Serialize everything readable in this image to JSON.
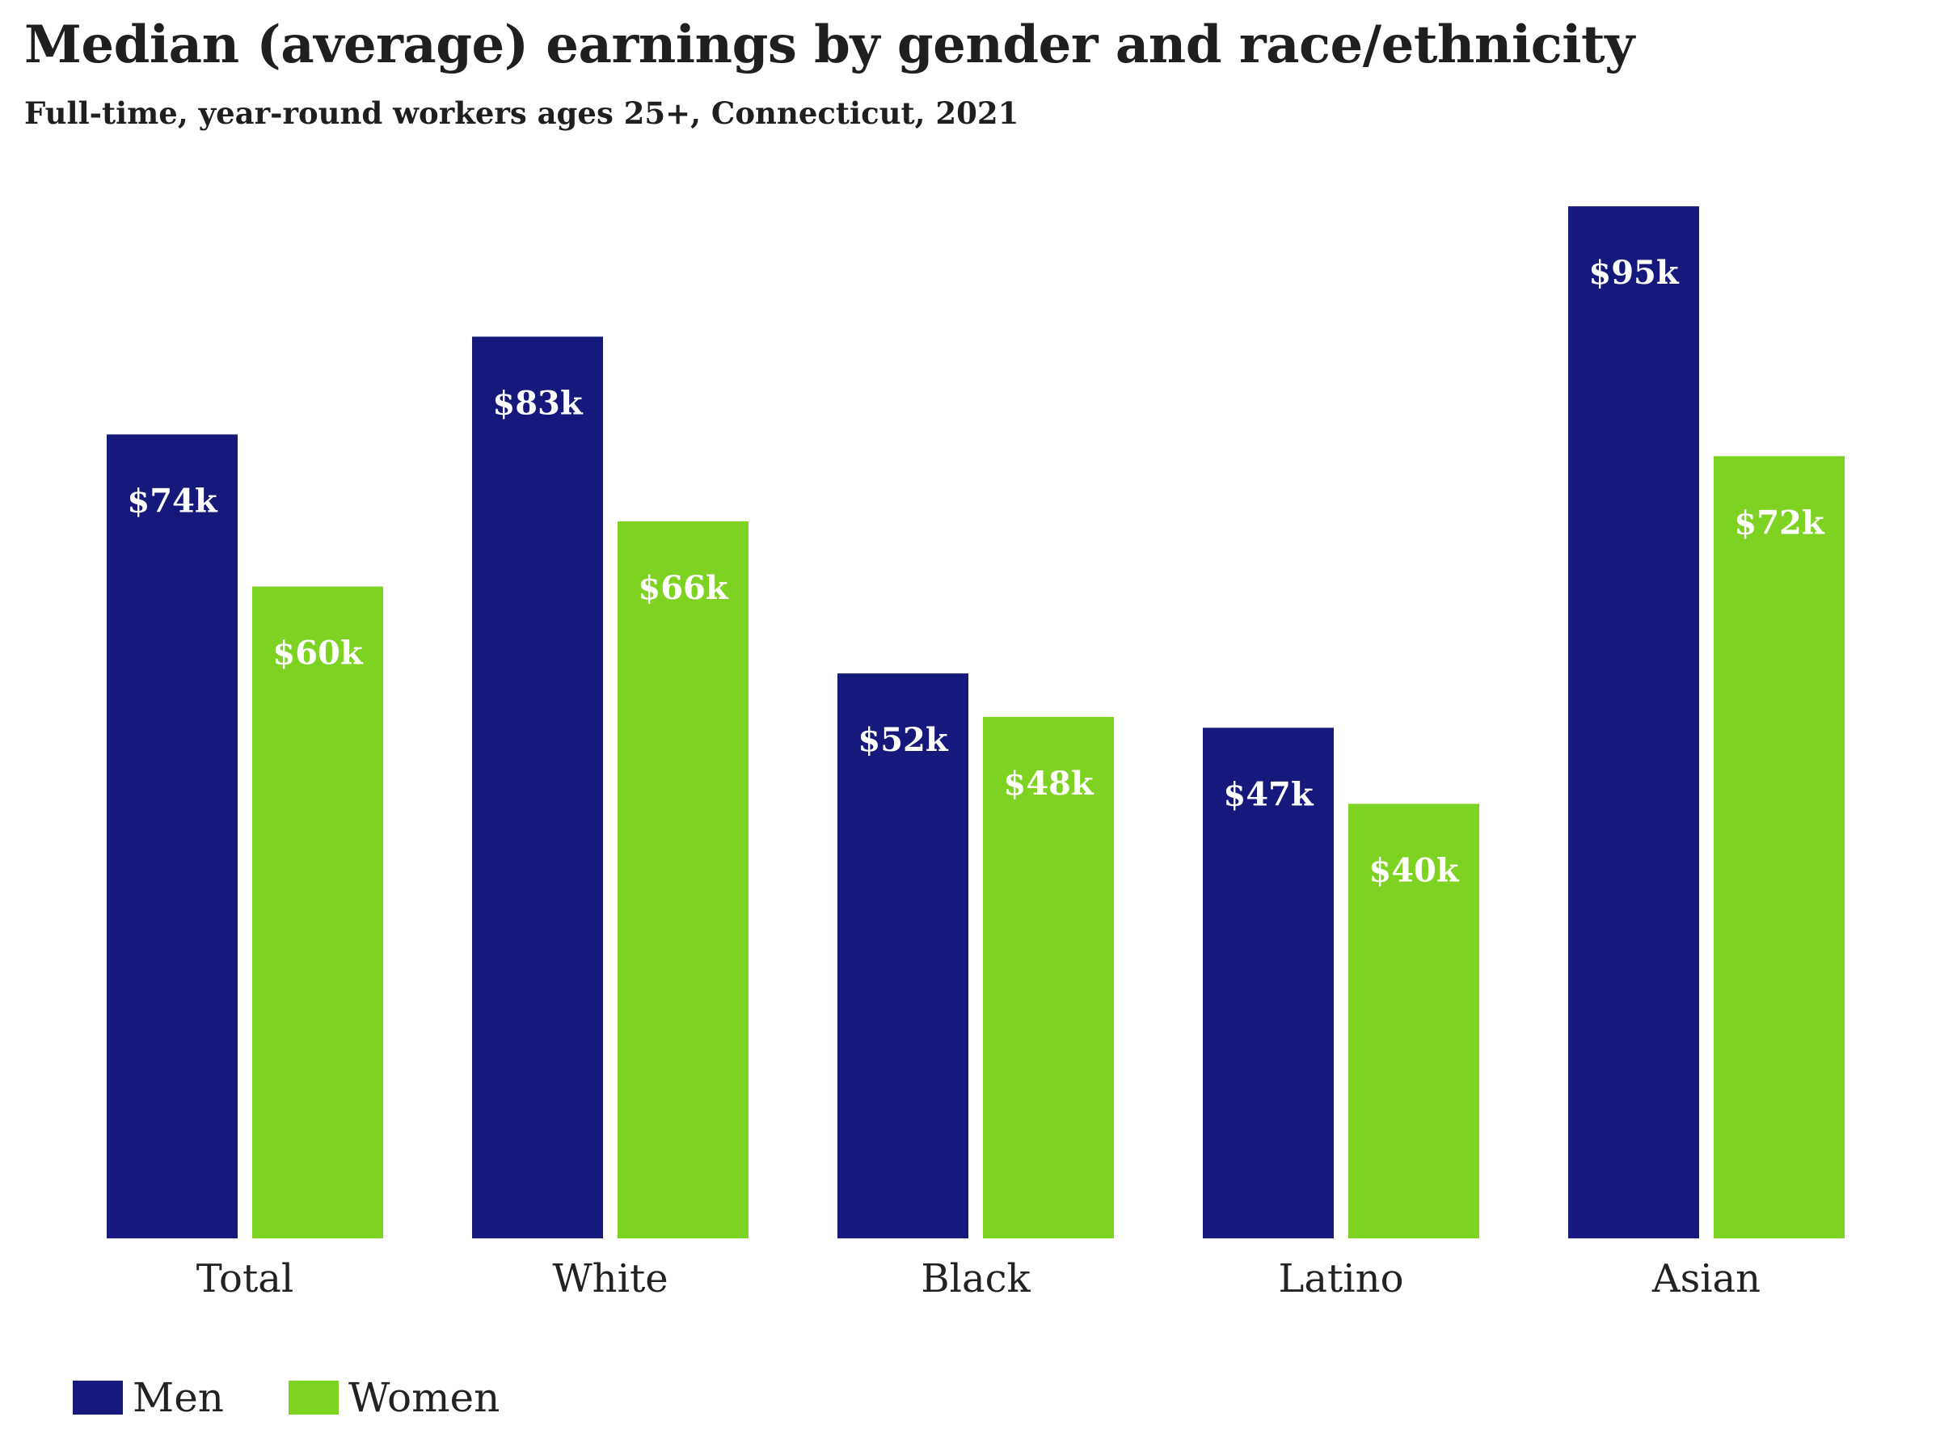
{
  "header": {
    "title": "Median (average) earnings by gender and race/ethnicity",
    "subtitle": "Full-time, year-round workers ages 25+, Connecticut, 2021"
  },
  "colors": {
    "men": "#17187b",
    "women": "#7ed322"
  },
  "chart_data": {
    "type": "bar",
    "title": "Median (average) earnings by gender and race/ethnicity",
    "subtitle": "Full-time, year-round workers ages 25+, Connecticut, 2021",
    "xlabel": "",
    "ylabel": "",
    "categories": [
      "Total",
      "White",
      "Black",
      "Latino",
      "Asian"
    ],
    "series": [
      {
        "name": "Men",
        "values": [
          74,
          83,
          52,
          47,
          95
        ],
        "labels": [
          "$74k",
          "$83k",
          "$52k",
          "$47k",
          "$95k"
        ]
      },
      {
        "name": "Women",
        "values": [
          60,
          66,
          48,
          40,
          72
        ],
        "labels": [
          "$60k",
          "$66k",
          "$48k",
          "$40k",
          "$72k"
        ]
      }
    ],
    "ylim": [
      0,
      100
    ],
    "grid": false,
    "legend_position": "bottom-left"
  }
}
